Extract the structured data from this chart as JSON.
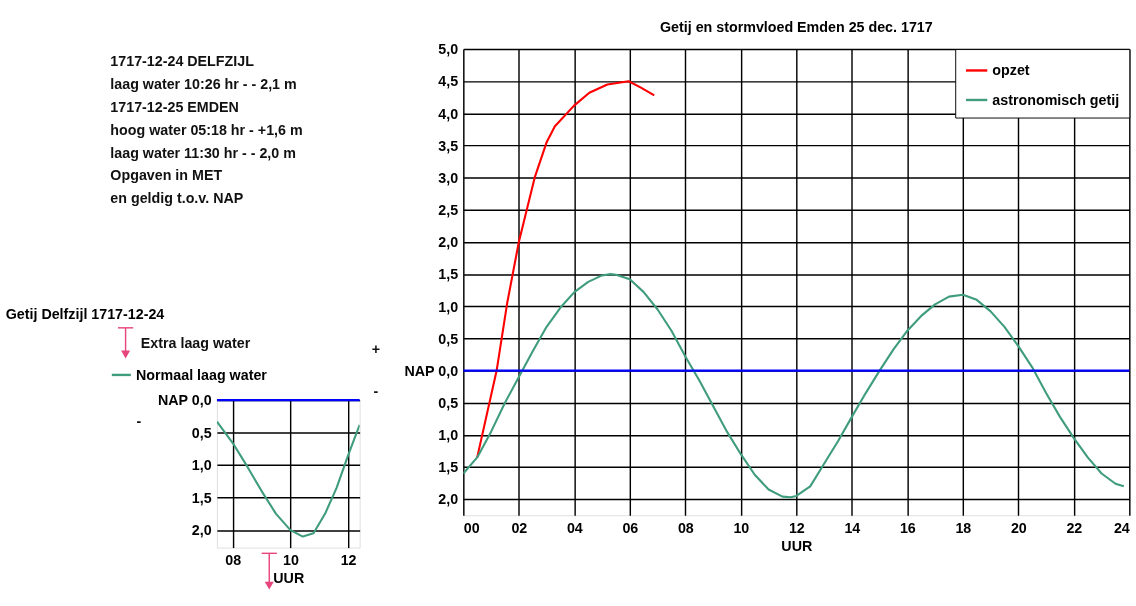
{
  "chart_data": [
    {
      "type": "other",
      "annotations": [
        "1717-12-24  DELFZIJL",
        "laag water      10:26 hr - - 2,1 m",
        "1717-12-25  EMDEN",
        "hoog water      05:18 hr - +1,6 m",
        "laag water      11:30 hr - - 2,0 m",
        "Opgaven in MET",
        "en geldig t.o.v. NAP"
      ]
    },
    {
      "type": "line",
      "title": "Getij Delfzijl 1717-12-24",
      "xlabel": "UUR",
      "legend": "top",
      "grid": true,
      "annotations": [
        "Extra laag water",
        "-"
      ],
      "xlim": [
        7.45,
        12.4
      ],
      "xticks": [
        {
          "value": 8,
          "label": "08"
        },
        {
          "value": 10,
          "label": "10"
        },
        {
          "value": 12,
          "label": "12"
        }
      ],
      "ylim": [
        -2.27,
        0
      ],
      "yticks": [
        {
          "value": 0,
          "label": "NAP 0,0"
        },
        {
          "value": -0.5,
          "label": "0,5"
        },
        {
          "value": -1,
          "label": "1,0"
        },
        {
          "value": -1.5,
          "label": "1,5"
        },
        {
          "value": -2,
          "label": "2,0"
        }
      ],
      "ref_lines": [
        {
          "axis": "y",
          "value": 0,
          "label": null,
          "color": "#0000ff"
        }
      ],
      "series": [
        {
          "name": "Normaal laag water",
          "color": "#3f9c7c",
          "x": [
            7.45,
            8,
            8.5,
            9,
            9.5,
            10,
            10.43,
            10.8,
            11.2,
            11.6,
            12,
            12.4
          ],
          "values": [
            -0.33,
            -0.66,
            -1.02,
            -1.4,
            -1.75,
            -2.0,
            -2.1,
            -2.05,
            -1.75,
            -1.35,
            -0.85,
            -0.38
          ]
        }
      ]
    },
    {
      "type": "line",
      "title": "Getij en stormvloed Emden 25 dec. 1717",
      "xlabel": "UUR",
      "legend": "top right",
      "grid": true,
      "annotations": [
        "+",
        "-"
      ],
      "xlim": [
        0,
        24
      ],
      "xticks": [
        {
          "value": 0,
          "label": "00"
        },
        {
          "value": 2,
          "label": "02"
        },
        {
          "value": 4,
          "label": "04"
        },
        {
          "value": 6,
          "label": "06"
        },
        {
          "value": 8,
          "label": "08"
        },
        {
          "value": 10,
          "label": "10"
        },
        {
          "value": 12,
          "label": "12"
        },
        {
          "value": 14,
          "label": "14"
        },
        {
          "value": 16,
          "label": "16"
        },
        {
          "value": 18,
          "label": "18"
        },
        {
          "value": 20,
          "label": "20"
        },
        {
          "value": 22,
          "label": "22"
        },
        {
          "value": 24,
          "label": "24"
        }
      ],
      "ylim": [
        -2.25,
        5
      ],
      "yticks": [
        {
          "value": 5,
          "label": "5,0"
        },
        {
          "value": 4.5,
          "label": "4,5"
        },
        {
          "value": 4,
          "label": "4,0"
        },
        {
          "value": 3.5,
          "label": "3,5"
        },
        {
          "value": 3,
          "label": "3,0"
        },
        {
          "value": 2.5,
          "label": "2,5"
        },
        {
          "value": 2,
          "label": "2,0"
        },
        {
          "value": 1.5,
          "label": "1,5"
        },
        {
          "value": 1,
          "label": "1,0"
        },
        {
          "value": 0.5,
          "label": "0,5"
        },
        {
          "value": 0,
          "label": "NAP 0,0"
        },
        {
          "value": -0.5,
          "label": "0,5"
        },
        {
          "value": -1,
          "label": "1,0"
        },
        {
          "value": -1.5,
          "label": "1,5"
        },
        {
          "value": -2,
          "label": "2,0"
        }
      ],
      "ref_lines": [
        {
          "axis": "y",
          "value": 0,
          "label": null,
          "color": "#0000ff"
        }
      ],
      "series": [
        {
          "name": "opzet",
          "color": "#ff0000",
          "x": [
            0.5,
            1.2,
            1.58,
            2.0,
            2.57,
            3.0,
            3.3,
            3.99,
            4.54,
            5.19,
            5.96,
            6.4,
            6.88
          ],
          "values": [
            -1.35,
            0.0,
            1.05,
            2.0,
            3.0,
            3.55,
            3.8,
            4.12,
            4.32,
            4.45,
            4.5,
            4.4,
            4.28
          ]
        },
        {
          "name": "astronomisch getij",
          "color": "#3f9c7c",
          "x": [
            0,
            0.5,
            1,
            1.5,
            2,
            2.5,
            3,
            3.5,
            4,
            4.5,
            5,
            5.3,
            5.5,
            6,
            6.5,
            7,
            7.5,
            8,
            8.5,
            9,
            9.5,
            10,
            10.5,
            11,
            11.5,
            11.8,
            12,
            12.5,
            13,
            13.5,
            14,
            14.5,
            15,
            15.5,
            16,
            16.5,
            17,
            17.5,
            18,
            18.5,
            19,
            19.5,
            20,
            20.5,
            21,
            21.5,
            22,
            22.5,
            23,
            23.5,
            23.8
          ],
          "values": [
            -1.6,
            -1.35,
            -0.95,
            -0.5,
            -0.1,
            0.3,
            0.68,
            0.98,
            1.22,
            1.38,
            1.48,
            1.5,
            1.49,
            1.42,
            1.22,
            0.95,
            0.62,
            0.22,
            -0.15,
            -0.55,
            -0.95,
            -1.3,
            -1.62,
            -1.85,
            -1.96,
            -1.97,
            -1.95,
            -1.8,
            -1.45,
            -1.1,
            -0.72,
            -0.35,
            0.0,
            0.33,
            0.62,
            0.85,
            1.03,
            1.15,
            1.18,
            1.1,
            0.92,
            0.68,
            0.38,
            0.05,
            -0.35,
            -0.72,
            -1.05,
            -1.35,
            -1.6,
            -1.76,
            -1.8
          ]
        }
      ]
    }
  ]
}
